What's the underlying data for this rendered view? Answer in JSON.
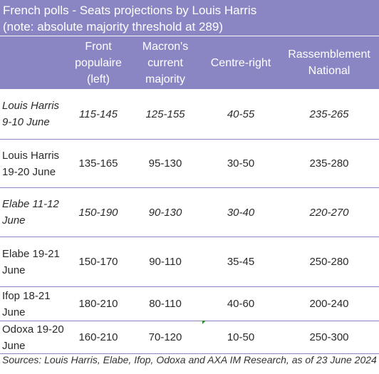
{
  "title": {
    "line1": "French polls - Seats projections by Louis Harris",
    "line2": "(note: absolute majority threshold at 289)"
  },
  "columns": [
    "Front populaire (left)",
    "Macron's current majority",
    "Centre-right",
    "Rassemblement National"
  ],
  "rows": [
    {
      "label": "Louis Harris 9-10 June",
      "values": [
        "115-145",
        "125-155",
        "40-55",
        "235-265"
      ],
      "italic": true
    },
    {
      "label": "Louis Harris 19-20 June",
      "values": [
        "135-165",
        "95-130",
        "30-50",
        "235-280"
      ],
      "italic": false
    },
    {
      "label": "Elabe 11-12 June",
      "values": [
        "150-190",
        "90-130",
        "30-40",
        "220-270"
      ],
      "italic": true
    },
    {
      "label": "Elabe 19-21 June",
      "values": [
        "150-170",
        "90-110",
        "35-45",
        "250-280"
      ],
      "italic": false
    },
    {
      "label": "Ifop 18-21 June",
      "values": [
        "180-210",
        "80-110",
        "40-60",
        "200-240"
      ],
      "italic": false
    },
    {
      "label": "Odoxa 19-20 June",
      "values": [
        "160-210",
        "70-120",
        "10-50",
        "250-300"
      ],
      "italic": false
    }
  ],
  "source": "Sources: Louis Harris,  Elabe, Ifop, Odoxa and AXA IM Research, as of 23 June 2024"
}
